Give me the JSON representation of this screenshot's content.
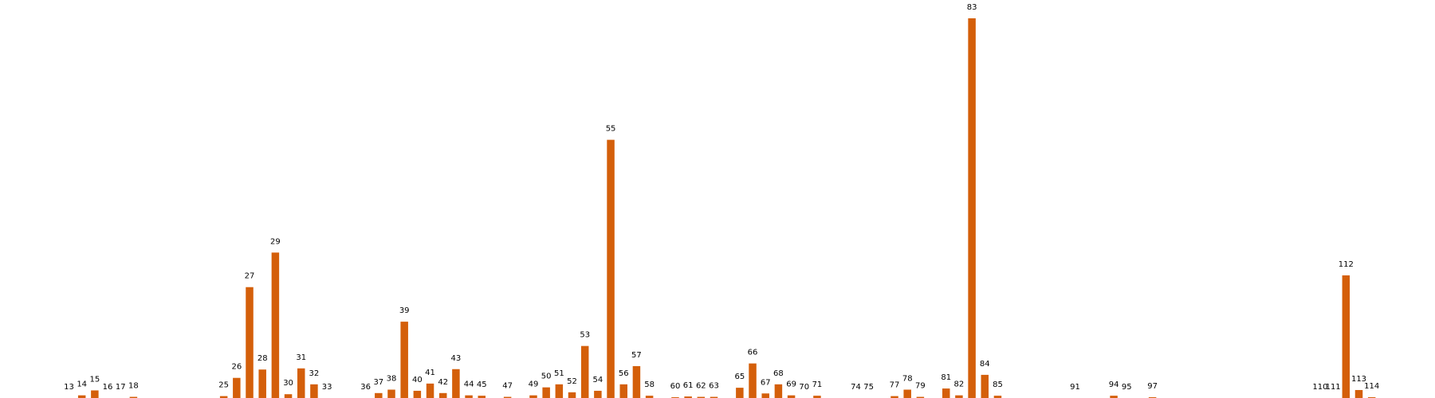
{
  "chart_data": {
    "type": "bar",
    "title": "",
    "xlabel": "",
    "ylabel": "",
    "axes_visible": false,
    "grid": false,
    "bar_color": "#d45f0a",
    "ylim": [
      0,
      100
    ],
    "categories": [
      "13",
      "14",
      "15",
      "16",
      "17",
      "18",
      "25",
      "26",
      "27",
      "28",
      "29",
      "30",
      "31",
      "32",
      "33",
      "36",
      "37",
      "38",
      "39",
      "40",
      "41",
      "42",
      "43",
      "44",
      "45",
      "47",
      "49",
      "50",
      "51",
      "52",
      "53",
      "54",
      "55",
      "56",
      "57",
      "58",
      "60",
      "61",
      "62",
      "63",
      "65",
      "66",
      "67",
      "68",
      "69",
      "70",
      "71",
      "74",
      "75",
      "77",
      "78",
      "79",
      "81",
      "82",
      "83",
      "84",
      "85",
      "91",
      "94",
      "95",
      "97",
      "110",
      "111",
      "112",
      "113",
      "114"
    ],
    "x": [
      13,
      14,
      15,
      16,
      17,
      18,
      25,
      26,
      27,
      28,
      29,
      30,
      31,
      32,
      33,
      36,
      37,
      38,
      39,
      40,
      41,
      42,
      43,
      44,
      45,
      47,
      49,
      50,
      51,
      52,
      53,
      54,
      55,
      56,
      57,
      58,
      60,
      61,
      62,
      63,
      65,
      66,
      67,
      68,
      69,
      70,
      71,
      74,
      75,
      77,
      78,
      79,
      81,
      82,
      83,
      84,
      85,
      91,
      94,
      95,
      97,
      110,
      111,
      112,
      113,
      114
    ],
    "values": [
      0,
      0.7,
      2,
      0,
      0,
      0.3,
      0.5,
      5.3,
      29.2,
      7.5,
      38.3,
      1,
      7.8,
      3.6,
      0,
      0,
      1.3,
      2.2,
      20.1,
      1.9,
      3.8,
      1.3,
      7.6,
      0.7,
      0.6,
      0.3,
      0.7,
      2.8,
      3.6,
      1.5,
      13.7,
      1.9,
      68,
      3.6,
      8.4,
      0.6,
      0.2,
      0.4,
      0.3,
      0.3,
      2.7,
      9.1,
      1.2,
      3.6,
      0.7,
      0,
      0.6,
      0,
      0,
      0.5,
      2.2,
      0.3,
      2.5,
      0.7,
      100,
      6.1,
      0.6,
      0,
      0.6,
      0,
      0.2,
      0,
      0,
      32.3,
      2.1,
      0.2
    ]
  }
}
